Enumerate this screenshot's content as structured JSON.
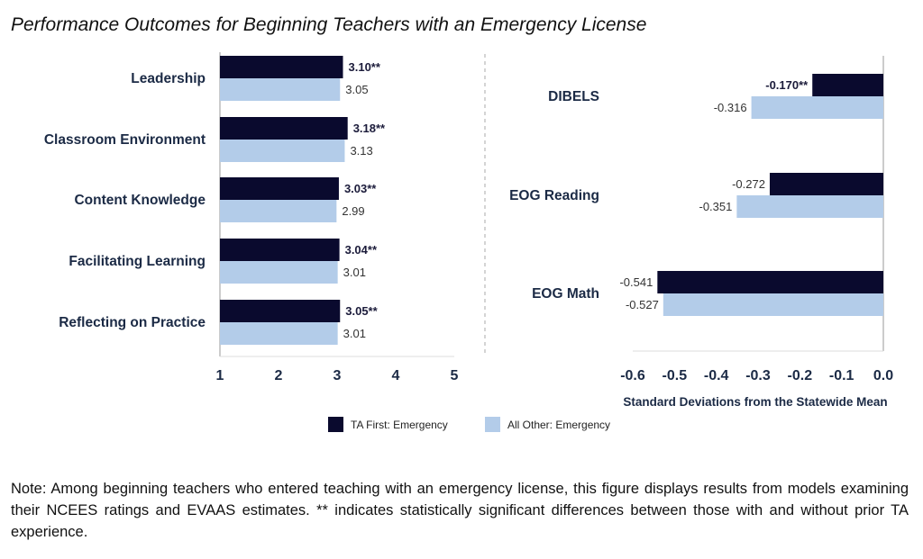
{
  "title": "Performance Outcomes for Beginning Teachers with an Emergency License",
  "colors": {
    "ta_first": "#0a0a2e",
    "all_other": "#b3cce9",
    "axis_text": "#1b2a45",
    "gridline": "#bbbbbb"
  },
  "legend": [
    {
      "label": "TA First: Emergency",
      "color": "#0a0a2e"
    },
    {
      "label": "All Other: Emergency",
      "color": "#b3cce9"
    }
  ],
  "note": "Note: Among beginning teachers who entered teaching with an emergency license, this figure displays results from models examining their NCEES ratings and EVAAS estimates. ** indicates statistically significant differences between those with and without prior TA experience.",
  "chart_data": [
    {
      "type": "bar",
      "orientation": "horizontal",
      "categories": [
        "Leadership",
        "Classroom Environment",
        "Content Knowledge",
        "Facilitating Learning",
        "Reflecting on Practice"
      ],
      "series": [
        {
          "name": "TA First: Emergency",
          "values": [
            3.1,
            3.18,
            3.03,
            3.04,
            3.05
          ],
          "labels": [
            "3.10**",
            "3.18**",
            "3.03**",
            "3.04**",
            "3.05**"
          ]
        },
        {
          "name": "All Other: Emergency",
          "values": [
            3.05,
            3.13,
            2.99,
            3.01,
            3.01
          ],
          "labels": [
            "3.05",
            "3.13",
            "2.99",
            "3.01",
            "3.01"
          ]
        }
      ],
      "xlim": [
        1,
        5
      ],
      "xticks": [
        "1",
        "2",
        "3",
        "4",
        "5"
      ],
      "xlabel": "",
      "grid": false
    },
    {
      "type": "bar",
      "orientation": "horizontal",
      "categories": [
        "DIBELS",
        "EOG Reading",
        "EOG Math"
      ],
      "series": [
        {
          "name": "TA First: Emergency",
          "values": [
            -0.17,
            -0.272,
            -0.541
          ],
          "labels": [
            "-0.170**",
            "-0.272",
            "-0.541"
          ]
        },
        {
          "name": "All Other: Emergency",
          "values": [
            -0.316,
            -0.351,
            -0.527
          ],
          "labels": [
            "-0.316",
            "-0.351",
            "-0.527"
          ]
        }
      ],
      "xlim": [
        -0.6,
        0.0
      ],
      "xticks": [
        "-0.6",
        "-0.5",
        "-0.4",
        "-0.3",
        "-0.2",
        "-0.1",
        "0.0"
      ],
      "xlabel": "Standard Deviations from the Statewide Mean",
      "grid": false
    }
  ]
}
